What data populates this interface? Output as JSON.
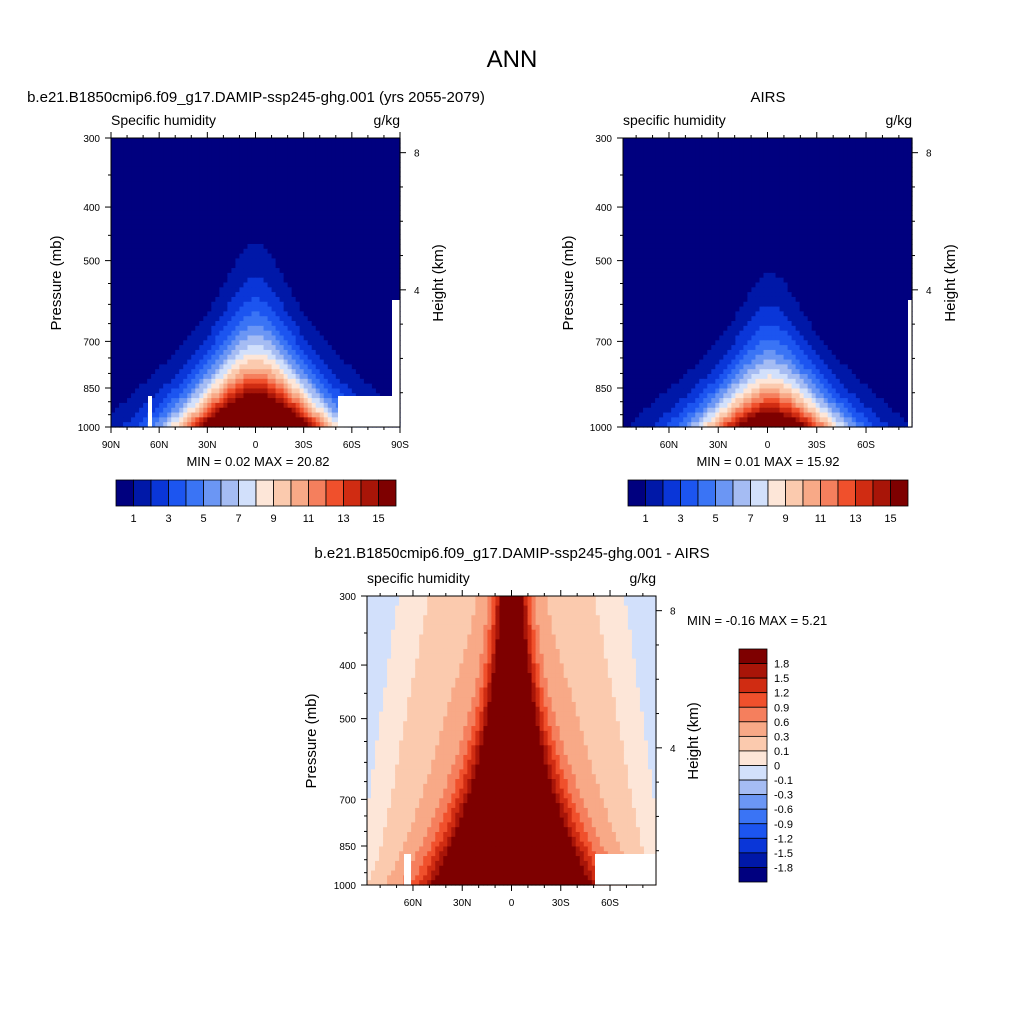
{
  "figure_title": "ANN",
  "palettes": {
    "sequential": [
      "#00007f",
      "#0018a8",
      "#0a36d8",
      "#1c55f0",
      "#3a74f5",
      "#6b96f4",
      "#a5bcf3",
      "#d2e0fb",
      "#fde6d8",
      "#fbcaae",
      "#f8a987",
      "#f57f5d",
      "#f0502c",
      "#d02c12",
      "#a81508",
      "#7e0000"
    ],
    "diverging": [
      "#7e0000",
      "#a81508",
      "#d02c12",
      "#f0502c",
      "#f57f5d",
      "#f8a987",
      "#fbcaae",
      "#fde6d8",
      "#d2e0fb",
      "#a5bcf3",
      "#6b96f4",
      "#3a74f5",
      "#1c55f0",
      "#0a36d8",
      "#0018a8",
      "#00007f"
    ]
  },
  "chart_data": [
    {
      "type": "heatmap",
      "id": "model",
      "title": "b.e21.B1850cmip6.f09_g17.DAMIP-ssp245-ghg.001 (yrs 2055-2079)",
      "left_label": "Specific humidity",
      "right_label": "g/kg",
      "ylabel": "Pressure (mb)",
      "y2label": "Height (km)",
      "pressure_ticks": [
        300,
        400,
        500,
        700,
        850,
        1000
      ],
      "height_ticks": [
        8,
        4
      ],
      "lat_ticks": [
        "90N",
        "60N",
        "30N",
        "0",
        "30S",
        "60S",
        "90S"
      ],
      "stats": "MIN =   0.02  MAX =  20.82",
      "colorbar_labels": [
        "1",
        "3",
        "5",
        "7",
        "9",
        "11",
        "13",
        "15"
      ],
      "field": {
        "peak": 20.8,
        "floor": 0.02
      }
    },
    {
      "type": "heatmap",
      "id": "obs",
      "title": "AIRS",
      "left_label": "specific humidity",
      "right_label": "g/kg",
      "ylabel": "Pressure (mb)",
      "y2label": "Height (km)",
      "pressure_ticks": [
        300,
        400,
        500,
        700,
        850,
        1000
      ],
      "height_ticks": [
        8,
        4
      ],
      "lat_ticks": [
        "60N",
        "30N",
        "0",
        "30S",
        "60S"
      ],
      "stats": "MIN =   0.01  MAX =  15.92",
      "colorbar_labels": [
        "1",
        "3",
        "5",
        "7",
        "9",
        "11",
        "13",
        "15"
      ],
      "field": {
        "peak": 15.9,
        "floor": 0.01
      }
    },
    {
      "type": "heatmap",
      "id": "diff",
      "title": "b.e21.B1850cmip6.f09_g17.DAMIP-ssp245-ghg.001 - AIRS",
      "left_label": "specific humidity",
      "right_label": "g/kg",
      "ylabel": "Pressure (mb)",
      "y2label": "Height (km)",
      "pressure_ticks": [
        300,
        400,
        500,
        700,
        850,
        1000
      ],
      "height_ticks": [
        8,
        4
      ],
      "lat_ticks": [
        "60N",
        "30N",
        "0",
        "30S",
        "60S"
      ],
      "stats": "MIN =  -0.16  MAX =    5.21",
      "colorbar_labels": [
        "1.8",
        "1.5",
        "1.2",
        "0.9",
        "0.6",
        "0.3",
        "0.1",
        "0",
        "-0.1",
        "-0.3",
        "-0.6",
        "-0.9",
        "-1.2",
        "-1.5",
        "-1.8"
      ],
      "field": {
        "peak": 5.21,
        "floor": -0.16
      }
    }
  ]
}
